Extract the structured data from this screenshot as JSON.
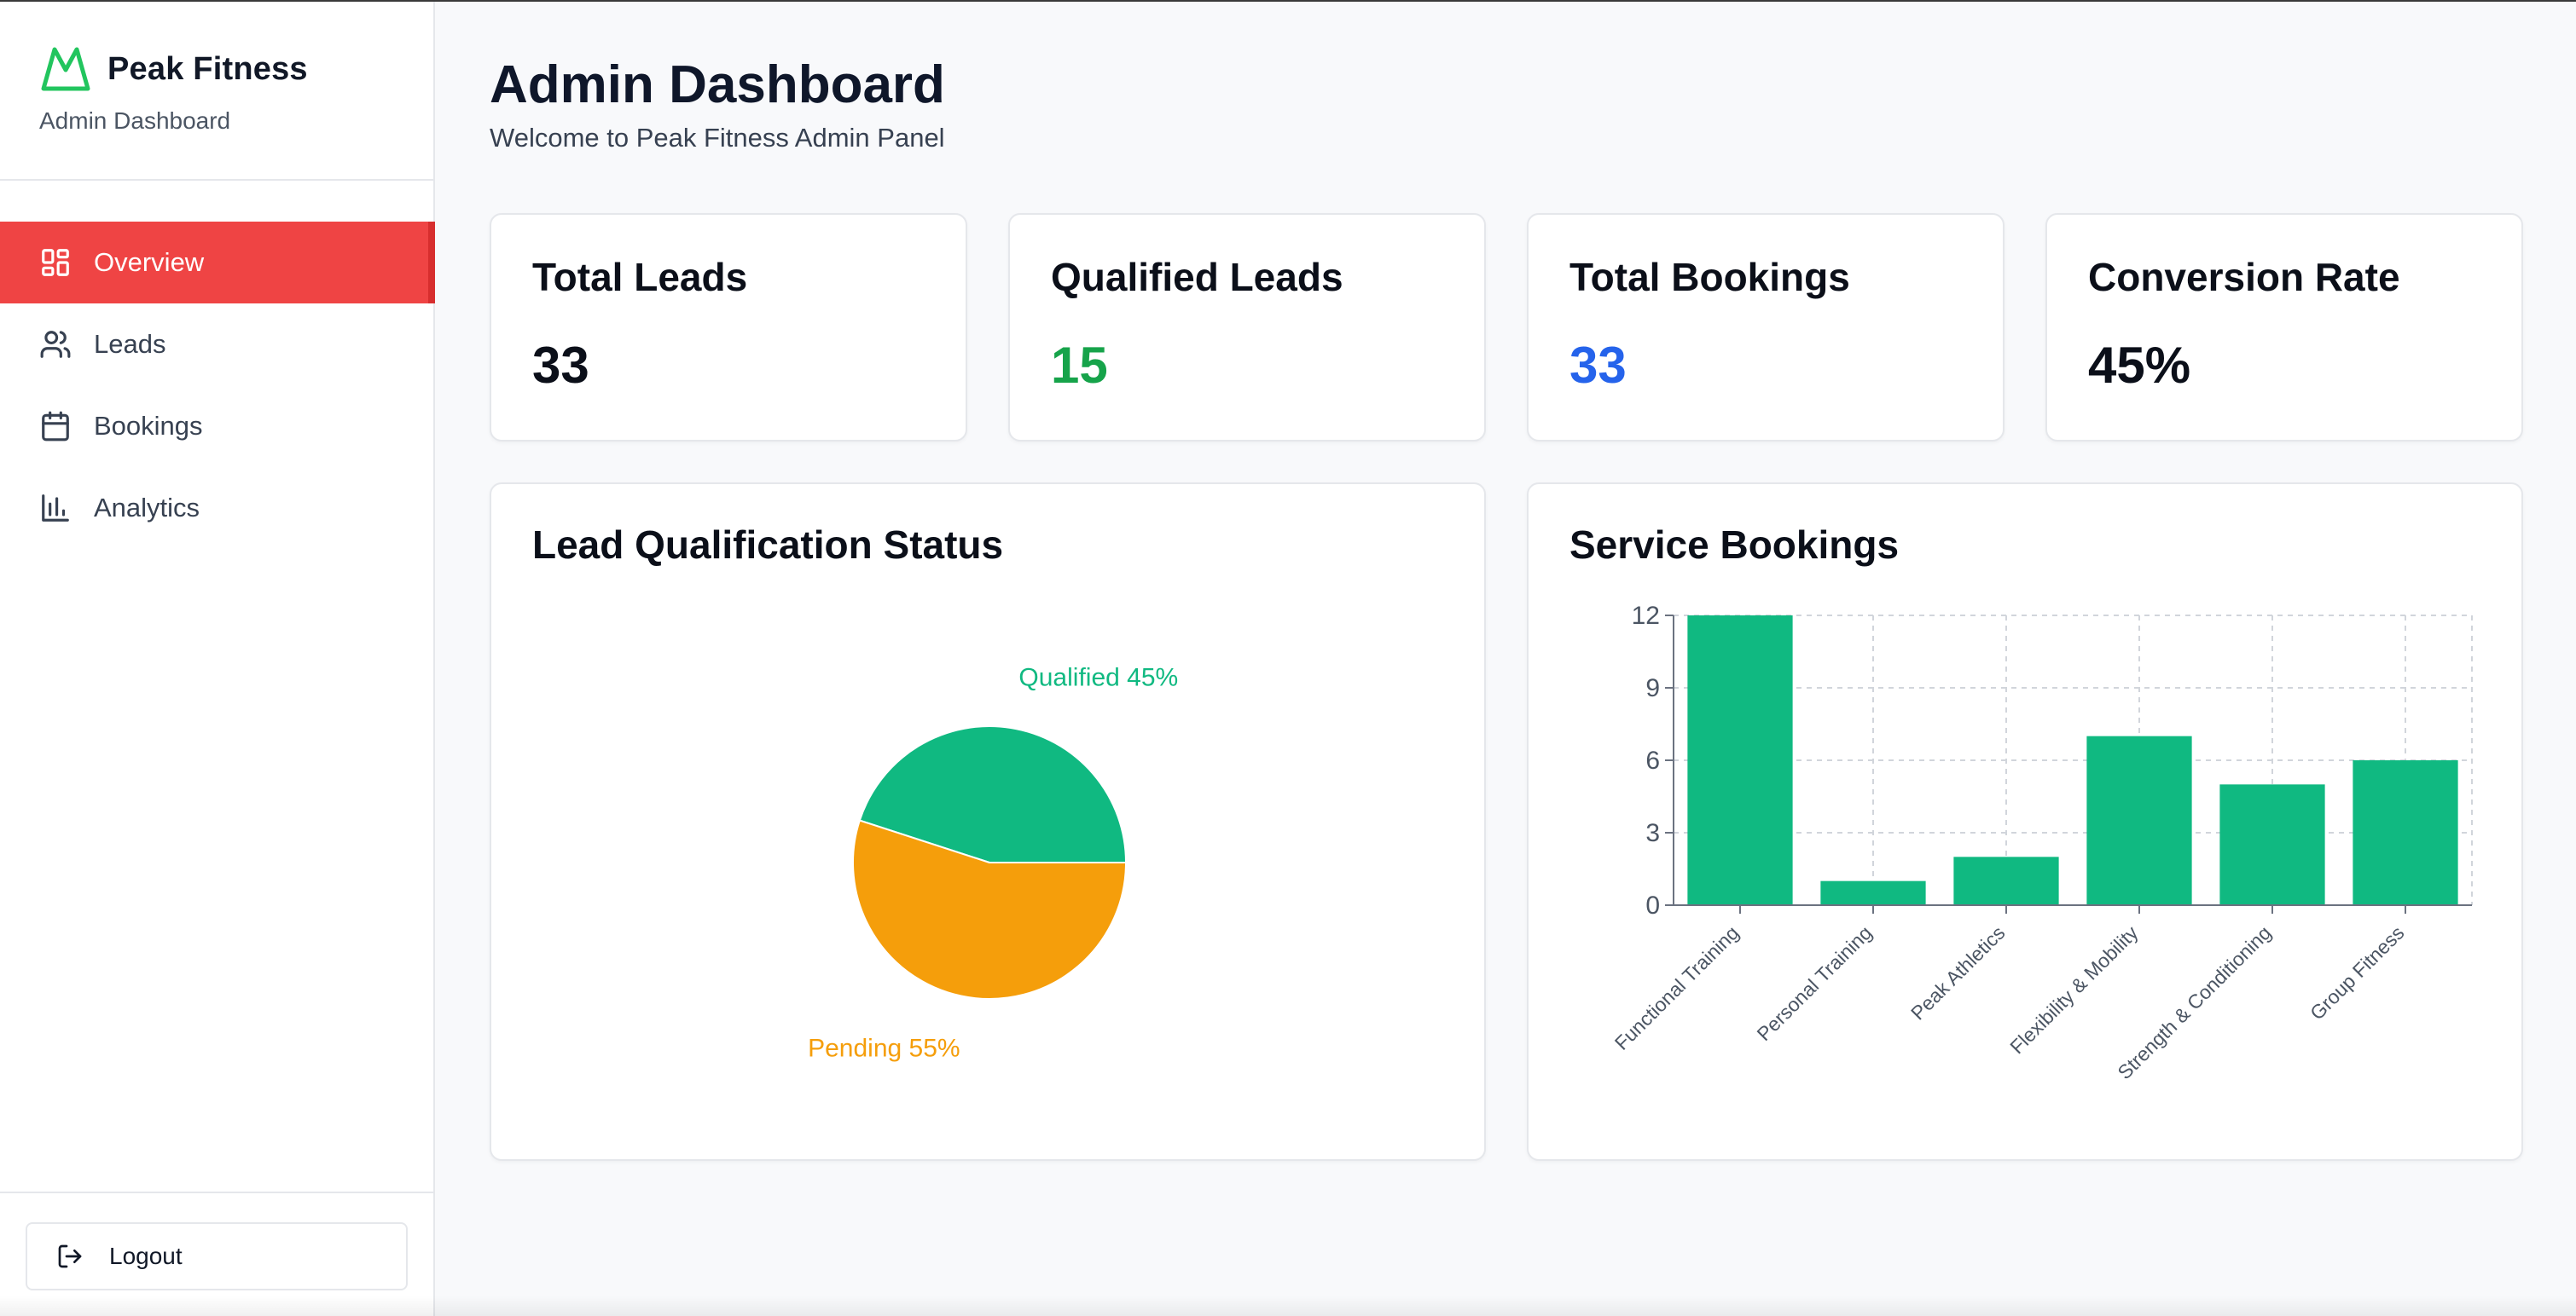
{
  "brand": {
    "name": "Peak Fitness",
    "subtitle": "Admin Dashboard",
    "logo_icon": "mountain-icon",
    "logo_color": "#22c55e"
  },
  "sidebar": {
    "items": [
      {
        "label": "Overview",
        "icon": "layout-grid-icon",
        "active": true
      },
      {
        "label": "Leads",
        "icon": "users-icon",
        "active": false
      },
      {
        "label": "Bookings",
        "icon": "calendar-icon",
        "active": false
      },
      {
        "label": "Analytics",
        "icon": "bar-chart-icon",
        "active": false
      }
    ],
    "active_color": "#ef4444",
    "logout_label": "Logout"
  },
  "header": {
    "title": "Admin Dashboard",
    "subtitle": "Welcome to Peak Fitness Admin Panel"
  },
  "stats": [
    {
      "label": "Total Leads",
      "value": "33",
      "color": "#0b0f19"
    },
    {
      "label": "Qualified Leads",
      "value": "15",
      "color": "#16a34a"
    },
    {
      "label": "Total Bookings",
      "value": "33",
      "color": "#2563eb"
    },
    {
      "label": "Conversion Rate",
      "value": "45%",
      "color": "#0b0f19"
    }
  ],
  "chart_data": [
    {
      "type": "pie",
      "title": "Lead Qualification Status",
      "slices": [
        {
          "name": "Qualified",
          "value": 45,
          "label": "Qualified 45%",
          "color": "#10b981"
        },
        {
          "name": "Pending",
          "value": 55,
          "label": "Pending 55%",
          "color": "#f59e0b"
        }
      ]
    },
    {
      "type": "bar",
      "title": "Service Bookings",
      "categories": [
        "Functional Training",
        "Personal Training",
        "Peak Athletics",
        "Flexibility & Mobility",
        "Strength & Conditioning",
        "Group Fitness"
      ],
      "values": [
        12,
        1,
        2,
        7,
        5,
        6
      ],
      "ylim": [
        0,
        12
      ],
      "yticks": [
        "0",
        "3",
        "6",
        "9",
        "12"
      ],
      "grid": true,
      "color": "#10b981"
    }
  ]
}
